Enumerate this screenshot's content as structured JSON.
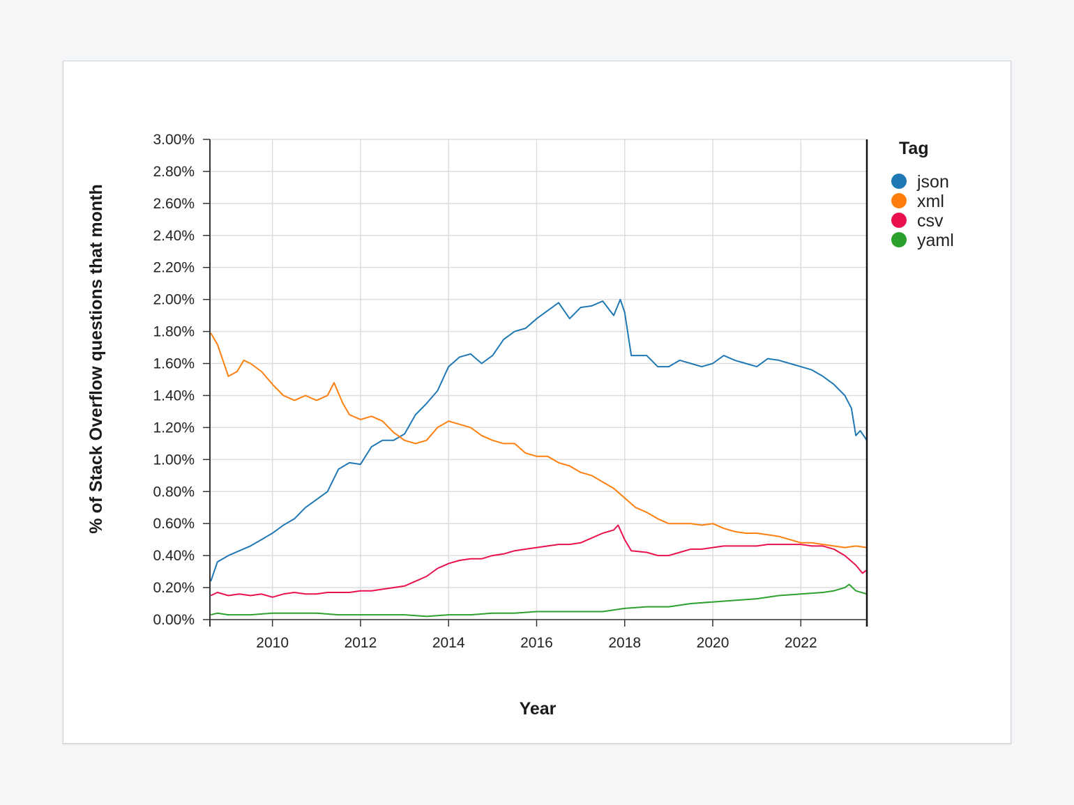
{
  "chart_data": {
    "type": "line",
    "xlabel": "Year",
    "ylabel": "% of Stack Overflow questions that month",
    "xlim": [
      2008.58,
      2023.5
    ],
    "ylim": [
      0,
      3.0
    ],
    "x_ticks": [
      2010,
      2012,
      2014,
      2016,
      2018,
      2020,
      2022
    ],
    "y_ticks": [
      "0.00%",
      "0.20%",
      "0.40%",
      "0.60%",
      "0.80%",
      "1.00%",
      "1.20%",
      "1.40%",
      "1.60%",
      "1.80%",
      "2.00%",
      "2.20%",
      "2.40%",
      "2.60%",
      "2.80%",
      "3.00%"
    ],
    "grid": true,
    "legend": {
      "title": "Tag",
      "placement": "right"
    },
    "series": [
      {
        "name": "json",
        "color": "#1f77b4",
        "points": [
          [
            2008.6,
            0.24
          ],
          [
            2008.75,
            0.36
          ],
          [
            2009.0,
            0.4
          ],
          [
            2009.25,
            0.43
          ],
          [
            2009.5,
            0.46
          ],
          [
            2009.75,
            0.5
          ],
          [
            2010.0,
            0.54
          ],
          [
            2010.25,
            0.59
          ],
          [
            2010.5,
            0.63
          ],
          [
            2010.75,
            0.7
          ],
          [
            2011.0,
            0.75
          ],
          [
            2011.25,
            0.8
          ],
          [
            2011.5,
            0.94
          ],
          [
            2011.75,
            0.98
          ],
          [
            2012.0,
            0.97
          ],
          [
            2012.25,
            1.08
          ],
          [
            2012.5,
            1.12
          ],
          [
            2012.75,
            1.12
          ],
          [
            2013.0,
            1.16
          ],
          [
            2013.25,
            1.28
          ],
          [
            2013.5,
            1.35
          ],
          [
            2013.75,
            1.43
          ],
          [
            2014.0,
            1.58
          ],
          [
            2014.25,
            1.64
          ],
          [
            2014.5,
            1.66
          ],
          [
            2014.75,
            1.6
          ],
          [
            2015.0,
            1.65
          ],
          [
            2015.25,
            1.75
          ],
          [
            2015.5,
            1.8
          ],
          [
            2015.75,
            1.82
          ],
          [
            2016.0,
            1.88
          ],
          [
            2016.25,
            1.93
          ],
          [
            2016.5,
            1.98
          ],
          [
            2016.75,
            1.88
          ],
          [
            2017.0,
            1.95
          ],
          [
            2017.25,
            1.96
          ],
          [
            2017.5,
            1.99
          ],
          [
            2017.75,
            1.9
          ],
          [
            2017.9,
            2.0
          ],
          [
            2018.0,
            1.92
          ],
          [
            2018.15,
            1.65
          ],
          [
            2018.5,
            1.65
          ],
          [
            2018.75,
            1.58
          ],
          [
            2019.0,
            1.58
          ],
          [
            2019.25,
            1.62
          ],
          [
            2019.5,
            1.6
          ],
          [
            2019.75,
            1.58
          ],
          [
            2020.0,
            1.6
          ],
          [
            2020.25,
            1.65
          ],
          [
            2020.5,
            1.62
          ],
          [
            2020.75,
            1.6
          ],
          [
            2021.0,
            1.58
          ],
          [
            2021.25,
            1.63
          ],
          [
            2021.5,
            1.62
          ],
          [
            2021.75,
            1.6
          ],
          [
            2022.0,
            1.58
          ],
          [
            2022.25,
            1.56
          ],
          [
            2022.5,
            1.52
          ],
          [
            2022.75,
            1.47
          ],
          [
            2023.0,
            1.4
          ],
          [
            2023.15,
            1.32
          ],
          [
            2023.25,
            1.15
          ],
          [
            2023.35,
            1.18
          ],
          [
            2023.5,
            1.12
          ]
        ]
      },
      {
        "name": "xml",
        "color": "#ff7f0e",
        "points": [
          [
            2008.6,
            1.79
          ],
          [
            2008.75,
            1.72
          ],
          [
            2009.0,
            1.52
          ],
          [
            2009.2,
            1.55
          ],
          [
            2009.35,
            1.62
          ],
          [
            2009.5,
            1.6
          ],
          [
            2009.75,
            1.55
          ],
          [
            2010.0,
            1.47
          ],
          [
            2010.25,
            1.4
          ],
          [
            2010.5,
            1.37
          ],
          [
            2010.75,
            1.4
          ],
          [
            2011.0,
            1.37
          ],
          [
            2011.25,
            1.4
          ],
          [
            2011.4,
            1.48
          ],
          [
            2011.6,
            1.35
          ],
          [
            2011.75,
            1.28
          ],
          [
            2012.0,
            1.25
          ],
          [
            2012.25,
            1.27
          ],
          [
            2012.5,
            1.24
          ],
          [
            2012.75,
            1.17
          ],
          [
            2013.0,
            1.12
          ],
          [
            2013.25,
            1.1
          ],
          [
            2013.5,
            1.12
          ],
          [
            2013.75,
            1.2
          ],
          [
            2014.0,
            1.24
          ],
          [
            2014.25,
            1.22
          ],
          [
            2014.5,
            1.2
          ],
          [
            2014.75,
            1.15
          ],
          [
            2015.0,
            1.12
          ],
          [
            2015.25,
            1.1
          ],
          [
            2015.5,
            1.1
          ],
          [
            2015.75,
            1.04
          ],
          [
            2016.0,
            1.02
          ],
          [
            2016.25,
            1.02
          ],
          [
            2016.5,
            0.98
          ],
          [
            2016.75,
            0.96
          ],
          [
            2017.0,
            0.92
          ],
          [
            2017.25,
            0.9
          ],
          [
            2017.5,
            0.86
          ],
          [
            2017.75,
            0.82
          ],
          [
            2018.0,
            0.76
          ],
          [
            2018.25,
            0.7
          ],
          [
            2018.5,
            0.67
          ],
          [
            2018.75,
            0.63
          ],
          [
            2019.0,
            0.6
          ],
          [
            2019.25,
            0.6
          ],
          [
            2019.5,
            0.6
          ],
          [
            2019.75,
            0.59
          ],
          [
            2020.0,
            0.6
          ],
          [
            2020.25,
            0.57
          ],
          [
            2020.5,
            0.55
          ],
          [
            2020.75,
            0.54
          ],
          [
            2021.0,
            0.54
          ],
          [
            2021.25,
            0.53
          ],
          [
            2021.5,
            0.52
          ],
          [
            2021.75,
            0.5
          ],
          [
            2022.0,
            0.48
          ],
          [
            2022.25,
            0.48
          ],
          [
            2022.5,
            0.47
          ],
          [
            2022.75,
            0.46
          ],
          [
            2023.0,
            0.45
          ],
          [
            2023.25,
            0.46
          ],
          [
            2023.5,
            0.45
          ]
        ]
      },
      {
        "name": "csv",
        "color": "#e8114e",
        "points": [
          [
            2008.6,
            0.15
          ],
          [
            2008.75,
            0.17
          ],
          [
            2009.0,
            0.15
          ],
          [
            2009.25,
            0.16
          ],
          [
            2009.5,
            0.15
          ],
          [
            2009.75,
            0.16
          ],
          [
            2010.0,
            0.14
          ],
          [
            2010.25,
            0.16
          ],
          [
            2010.5,
            0.17
          ],
          [
            2010.75,
            0.16
          ],
          [
            2011.0,
            0.16
          ],
          [
            2011.25,
            0.17
          ],
          [
            2011.5,
            0.17
          ],
          [
            2011.75,
            0.17
          ],
          [
            2012.0,
            0.18
          ],
          [
            2012.25,
            0.18
          ],
          [
            2012.5,
            0.19
          ],
          [
            2012.75,
            0.2
          ],
          [
            2013.0,
            0.21
          ],
          [
            2013.25,
            0.24
          ],
          [
            2013.5,
            0.27
          ],
          [
            2013.75,
            0.32
          ],
          [
            2014.0,
            0.35
          ],
          [
            2014.25,
            0.37
          ],
          [
            2014.5,
            0.38
          ],
          [
            2014.75,
            0.38
          ],
          [
            2015.0,
            0.4
          ],
          [
            2015.25,
            0.41
          ],
          [
            2015.5,
            0.43
          ],
          [
            2015.75,
            0.44
          ],
          [
            2016.0,
            0.45
          ],
          [
            2016.25,
            0.46
          ],
          [
            2016.5,
            0.47
          ],
          [
            2016.75,
            0.47
          ],
          [
            2017.0,
            0.48
          ],
          [
            2017.25,
            0.51
          ],
          [
            2017.5,
            0.54
          ],
          [
            2017.75,
            0.56
          ],
          [
            2017.85,
            0.59
          ],
          [
            2018.0,
            0.5
          ],
          [
            2018.15,
            0.43
          ],
          [
            2018.5,
            0.42
          ],
          [
            2018.75,
            0.4
          ],
          [
            2019.0,
            0.4
          ],
          [
            2019.25,
            0.42
          ],
          [
            2019.5,
            0.44
          ],
          [
            2019.75,
            0.44
          ],
          [
            2020.0,
            0.45
          ],
          [
            2020.25,
            0.46
          ],
          [
            2020.5,
            0.46
          ],
          [
            2020.75,
            0.46
          ],
          [
            2021.0,
            0.46
          ],
          [
            2021.25,
            0.47
          ],
          [
            2021.5,
            0.47
          ],
          [
            2021.75,
            0.47
          ],
          [
            2022.0,
            0.47
          ],
          [
            2022.25,
            0.46
          ],
          [
            2022.5,
            0.46
          ],
          [
            2022.75,
            0.44
          ],
          [
            2023.0,
            0.4
          ],
          [
            2023.25,
            0.34
          ],
          [
            2023.4,
            0.29
          ],
          [
            2023.5,
            0.31
          ]
        ]
      },
      {
        "name": "yaml",
        "color": "#2ca02c",
        "points": [
          [
            2008.6,
            0.03
          ],
          [
            2008.75,
            0.04
          ],
          [
            2009.0,
            0.03
          ],
          [
            2009.5,
            0.03
          ],
          [
            2010.0,
            0.04
          ],
          [
            2010.5,
            0.04
          ],
          [
            2011.0,
            0.04
          ],
          [
            2011.5,
            0.03
          ],
          [
            2012.0,
            0.03
          ],
          [
            2012.5,
            0.03
          ],
          [
            2013.0,
            0.03
          ],
          [
            2013.5,
            0.02
          ],
          [
            2014.0,
            0.03
          ],
          [
            2014.5,
            0.03
          ],
          [
            2015.0,
            0.04
          ],
          [
            2015.5,
            0.04
          ],
          [
            2016.0,
            0.05
          ],
          [
            2016.5,
            0.05
          ],
          [
            2017.0,
            0.05
          ],
          [
            2017.5,
            0.05
          ],
          [
            2018.0,
            0.07
          ],
          [
            2018.5,
            0.08
          ],
          [
            2019.0,
            0.08
          ],
          [
            2019.5,
            0.1
          ],
          [
            2020.0,
            0.11
          ],
          [
            2020.5,
            0.12
          ],
          [
            2021.0,
            0.13
          ],
          [
            2021.5,
            0.15
          ],
          [
            2022.0,
            0.16
          ],
          [
            2022.5,
            0.17
          ],
          [
            2022.75,
            0.18
          ],
          [
            2023.0,
            0.2
          ],
          [
            2023.1,
            0.22
          ],
          [
            2023.25,
            0.18
          ],
          [
            2023.5,
            0.16
          ]
        ]
      }
    ]
  }
}
